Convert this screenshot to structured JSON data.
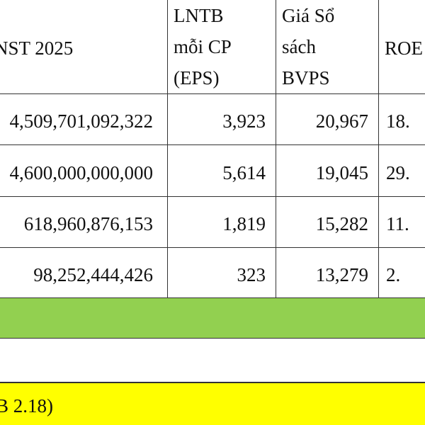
{
  "table": {
    "header": [
      [
        "NST 2025"
      ],
      [
        "LNTB",
        "mỗi CP",
        "(EPS)"
      ],
      [
        "Giá Sổ",
        "sách",
        "BVPS"
      ],
      [
        "ROE"
      ]
    ],
    "rows": [
      [
        "4,509,701,092,322",
        "3,923",
        "20,967",
        "18."
      ],
      [
        "4,600,000,000,000",
        "5,614",
        "19,045",
        "29."
      ],
      [
        "618,960,876,153",
        "1,819",
        "15,282",
        "11."
      ],
      [
        "98,252,444,426",
        "323",
        "13,279",
        "2."
      ]
    ],
    "note": "B 2.18)"
  }
}
